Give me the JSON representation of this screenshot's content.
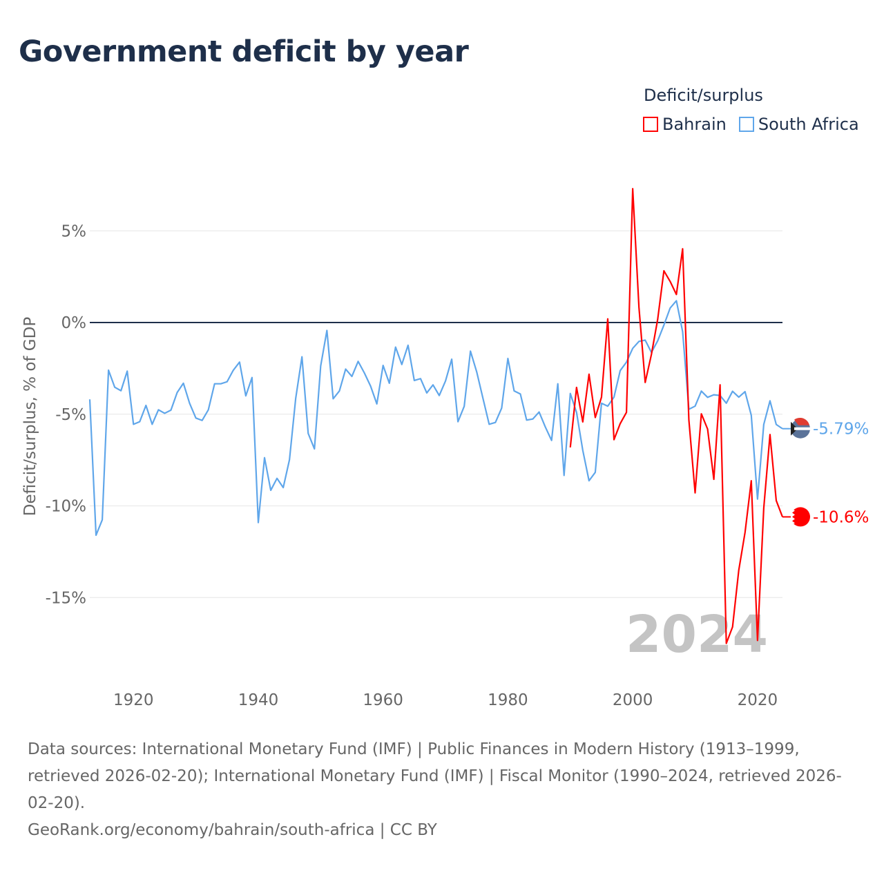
{
  "title": "Government deficit by year",
  "legend": {
    "title": "Deficit/surplus",
    "items": [
      {
        "label": "Bahrain",
        "color": "#ff0000"
      },
      {
        "label": "South Africa",
        "color": "#5fa6ea"
      }
    ]
  },
  "footer": {
    "sources": "Data sources: International Monetary Fund (IMF) | Public Finances in Modern History (1913–1999, retrieved 2026-02-20); International Monetary Fund (IMF) | Fiscal Monitor (1990–2024, retrieved 2026-02-20).",
    "credit": "GeoRank.org/economy/bahrain/south-africa | CC BY"
  },
  "chart_data": {
    "type": "line",
    "title": "Government deficit by year",
    "ylabel": "Deficit/surplus, % of GDP",
    "xlabel": "",
    "xlim": [
      1913,
      2024
    ],
    "ylim": [
      -19,
      8
    ],
    "x_ticks": [
      1920,
      1940,
      1960,
      1980,
      2000,
      2020
    ],
    "y_ticks": [
      {
        "v": 5,
        "label": "5%"
      },
      {
        "v": 0,
        "label": "0%"
      },
      {
        "v": -5,
        "label": "-5%"
      },
      {
        "v": -10,
        "label": "-10%"
      },
      {
        "v": -15,
        "label": "-15%"
      }
    ],
    "watermark_year": "2024",
    "series": [
      {
        "name": "South Africa",
        "color": "#5fa6ea",
        "start_year": 1913,
        "end_label": "-5.79%",
        "values": [
          -4.19,
          -11.6,
          -10.76,
          -2.6,
          -3.53,
          -3.72,
          -2.65,
          -5.55,
          -5.41,
          -4.52,
          -5.55,
          -4.76,
          -4.95,
          -4.78,
          -3.82,
          -3.31,
          -4.41,
          -5.21,
          -5.34,
          -4.76,
          -3.34,
          -3.34,
          -3.23,
          -2.6,
          -2.16,
          -4.0,
          -3.0,
          -10.91,
          -7.37,
          -9.15,
          -8.5,
          -9.0,
          -7.48,
          -4.13,
          -1.87,
          -6.05,
          -6.89,
          -2.37,
          -0.43,
          -4.16,
          -3.73,
          -2.54,
          -2.94,
          -2.12,
          -2.75,
          -3.47,
          -4.44,
          -2.34,
          -3.31,
          -1.34,
          -2.29,
          -1.24,
          -3.16,
          -3.06,
          -3.84,
          -3.4,
          -3.98,
          -3.19,
          -2.0,
          -5.41,
          -4.57,
          -1.56,
          -2.69,
          -4.13,
          -5.55,
          -5.45,
          -4.67,
          -1.96,
          -3.73,
          -3.9,
          -5.32,
          -5.26,
          -4.88,
          -5.7,
          -6.43,
          -3.34,
          -8.34,
          -3.87,
          -4.9,
          -6.97,
          -8.63,
          -8.17,
          -4.4,
          -4.56,
          -4.07,
          -2.62,
          -2.16,
          -1.41,
          -1.03,
          -0.96,
          -1.63,
          -1.0,
          -0.14,
          0.79,
          1.19,
          -0.5,
          -4.73,
          -4.56,
          -3.74,
          -4.08,
          -3.94,
          -3.98,
          -4.4,
          -3.75,
          -4.07,
          -3.77,
          -5.06,
          -9.63,
          -5.56,
          -4.27,
          -5.56,
          -5.79
        ]
      },
      {
        "name": "Bahrain",
        "color": "#ff0000",
        "start_year": 1990,
        "end_label": "-10.6%",
        "values": [
          -6.81,
          -3.54,
          -5.42,
          -2.82,
          -5.18,
          -4.07,
          0.2,
          -6.39,
          -5.51,
          -4.9,
          7.3,
          0.83,
          -3.27,
          -1.74,
          0.17,
          2.82,
          2.24,
          1.53,
          4.02,
          -5.31,
          -9.29,
          -4.98,
          -5.81,
          -8.55,
          -3.4,
          -17.5,
          -16.6,
          -13.5,
          -11.45,
          -8.63,
          -17.34,
          -10.12,
          -6.11,
          -9.71,
          -10.6
        ]
      }
    ]
  }
}
